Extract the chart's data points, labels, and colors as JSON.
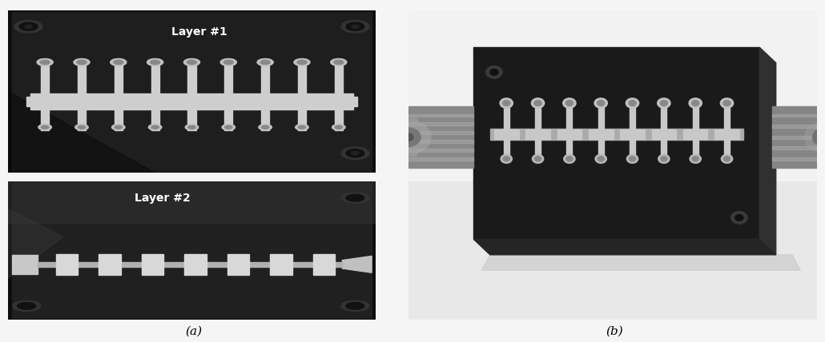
{
  "figure_width": 10.3,
  "figure_height": 4.28,
  "dpi": 100,
  "background_color": "#f5f5f5",
  "label_a": "(a)",
  "label_b": "(b)",
  "label_fontsize": 11,
  "label_fontstyle": "italic",
  "layer1_label": "Layer #1",
  "layer2_label": "Layer #2",
  "layer_label_fontsize": 10,
  "white": "#ffffff",
  "light_gray": "#dddddd",
  "mid_gray": "#aaaaaa",
  "dark_gray": "#555555",
  "very_dark": "#1a1a1a",
  "pcb_dark": "#2a2a2a",
  "metal_silver": "#c8c8c8",
  "num_crosses_layer1": 9,
  "num_crosses_assembled": 8
}
